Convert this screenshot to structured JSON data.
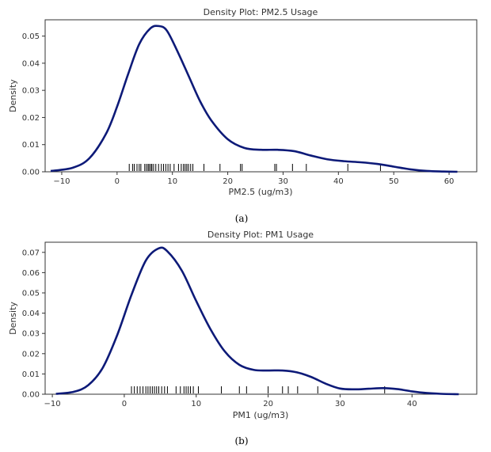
{
  "chart_data": [
    {
      "type": "density",
      "title": "Density Plot: PM2.5 Usage",
      "xlabel": "PM2.5 (ug/m3)",
      "ylabel": "Density",
      "caption": "(a)",
      "xlim": [
        -13,
        65
      ],
      "ylim": [
        0,
        0.056
      ],
      "xticks": [
        -10,
        0,
        10,
        20,
        30,
        40,
        50,
        60
      ],
      "xtick_labels": [
        "−10",
        "0",
        "10",
        "20",
        "30",
        "40",
        "50",
        "60"
      ],
      "yticks": [
        0,
        0.01,
        0.02,
        0.03,
        0.04,
        0.05
      ],
      "ytick_labels": [
        "0.00",
        "0.01",
        "0.02",
        "0.03",
        "0.04",
        "0.05"
      ],
      "color": "#0d1a78",
      "curve": {
        "x": [
          -12,
          -8,
          -5,
          -2,
          0,
          2,
          4,
          6,
          7.5,
          9,
          11,
          13,
          15,
          17,
          20,
          23,
          26,
          29,
          32,
          35,
          38,
          41,
          44,
          47,
          50,
          53,
          56,
          59,
          61.5
        ],
        "y": [
          0.0003,
          0.0015,
          0.005,
          0.014,
          0.024,
          0.036,
          0.047,
          0.0528,
          0.0537,
          0.052,
          0.044,
          0.035,
          0.026,
          0.019,
          0.012,
          0.0088,
          0.0081,
          0.0081,
          0.0076,
          0.006,
          0.0046,
          0.0039,
          0.0035,
          0.0029,
          0.0019,
          0.0009,
          0.0003,
          0.0001,
          0.0
        ]
      },
      "rug": [
        2.2,
        2.8,
        3.1,
        3.6,
        4.0,
        4.3,
        5.0,
        5.3,
        5.6,
        5.8,
        6.1,
        6.3,
        6.6,
        7.0,
        7.5,
        8.0,
        8.4,
        8.8,
        9.2,
        9.6,
        10.3,
        11.1,
        11.6,
        12.0,
        12.3,
        12.6,
        12.9,
        13.3,
        13.7,
        15.7,
        18.6,
        22.3,
        22.6,
        28.5,
        28.8,
        31.7,
        34.2,
        41.7,
        47.6
      ]
    },
    {
      "type": "density",
      "title": "Density Plot: PM1 Usage",
      "xlabel": "PM1 (ug/m3)",
      "ylabel": "Density",
      "caption": "(b)",
      "xlim": [
        -11,
        49
      ],
      "ylim": [
        0,
        0.075
      ],
      "xticks": [
        -10,
        0,
        10,
        20,
        30,
        40
      ],
      "xtick_labels": [
        "−10",
        "0",
        "10",
        "20",
        "30",
        "40"
      ],
      "yticks": [
        0,
        0.01,
        0.02,
        0.03,
        0.04,
        0.05,
        0.06,
        0.07
      ],
      "ytick_labels": [
        "0.00",
        "0.01",
        "0.02",
        "0.03",
        "0.04",
        "0.05",
        "0.06",
        "0.07"
      ],
      "color": "#0d1a78",
      "curve": {
        "x": [
          -9.5,
          -7,
          -5,
          -3,
          -1,
          1,
          3,
          4.8,
          6,
          8,
          10,
          12,
          14,
          16,
          18,
          20,
          22,
          24,
          26,
          28,
          30,
          32,
          34,
          36,
          38,
          40,
          42,
          44,
          46.5
        ],
        "y": [
          0.0002,
          0.0012,
          0.0045,
          0.013,
          0.029,
          0.049,
          0.066,
          0.072,
          0.0705,
          0.061,
          0.046,
          0.032,
          0.021,
          0.0145,
          0.012,
          0.0117,
          0.0117,
          0.0108,
          0.0085,
          0.0052,
          0.0028,
          0.0024,
          0.0027,
          0.003,
          0.0025,
          0.0014,
          0.0006,
          0.0002,
          0.0
        ]
      },
      "rug": [
        1.0,
        1.4,
        1.8,
        2.2,
        2.6,
        3.0,
        3.3,
        3.6,
        3.9,
        4.2,
        4.5,
        4.8,
        5.2,
        5.6,
        6.0,
        7.2,
        7.8,
        8.3,
        8.6,
        8.9,
        9.2,
        9.6,
        10.3,
        13.5,
        16.0,
        17.0,
        20.0,
        22.0,
        22.8,
        24.1,
        26.9,
        36.2
      ]
    }
  ]
}
